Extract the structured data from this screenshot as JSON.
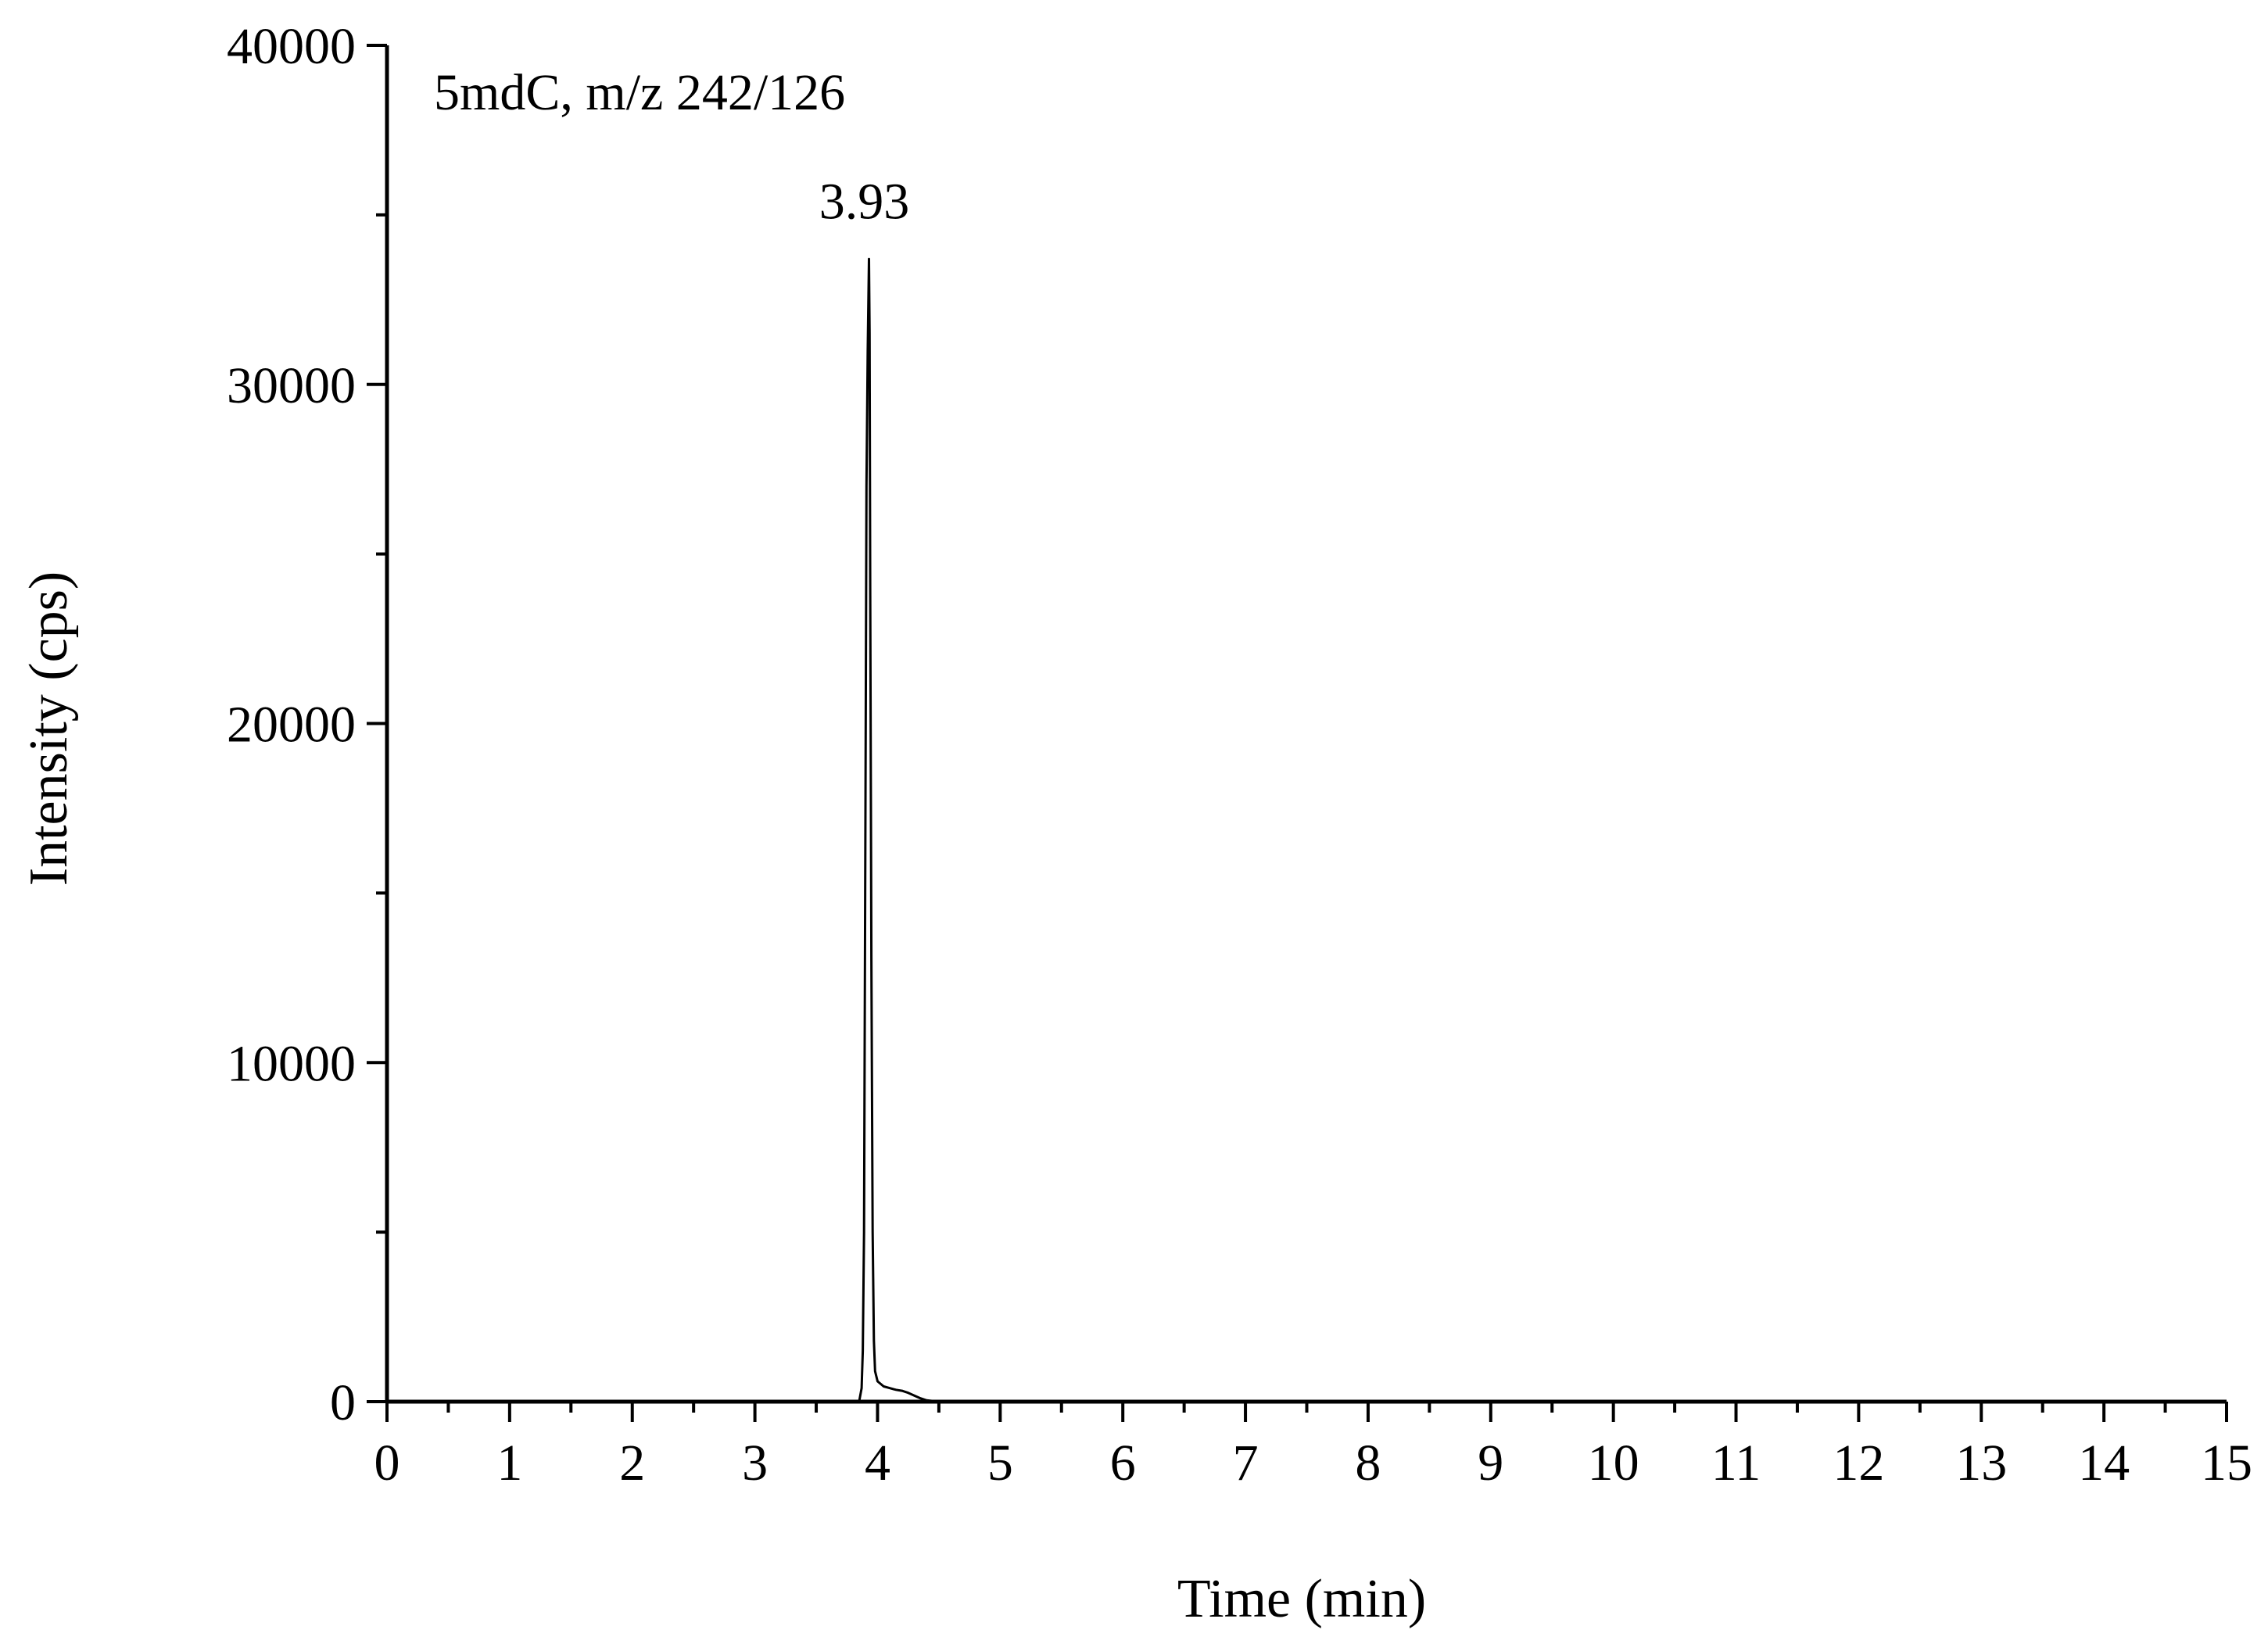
{
  "chart_data": {
    "type": "line",
    "title": "",
    "annotations": {
      "compound": "5mdC, m/z 242/126",
      "peak_label": "3.93"
    },
    "xlabel": "Time (min)",
    "ylabel": "Intensity (cps)",
    "xlim": [
      0,
      15
    ],
    "ylim": [
      0,
      40000
    ],
    "x_ticks": [
      0,
      1,
      2,
      3,
      4,
      5,
      6,
      7,
      8,
      9,
      10,
      11,
      12,
      13,
      14,
      15
    ],
    "x_tick_labels": [
      "0",
      "1",
      "2",
      "3",
      "4",
      "5",
      "6",
      "7",
      "8",
      "9",
      "10",
      "11",
      "12",
      "13",
      "14",
      "15"
    ],
    "x_minor_step": 0.5,
    "y_ticks": [
      0,
      10000,
      20000,
      30000,
      40000
    ],
    "y_tick_labels": [
      "0",
      "10000",
      "20000",
      "30000",
      "40000"
    ],
    "y_minor_step": 5000,
    "grid": false,
    "legend": "none",
    "line_color": "#000000",
    "series": [
      {
        "x": [
          0,
          3.5,
          3.85,
          3.87,
          3.88,
          3.89,
          3.9,
          3.91,
          3.92,
          3.93,
          3.935,
          3.94,
          3.95,
          3.96,
          3.97,
          3.98,
          4.0,
          4.05,
          4.1,
          4.15,
          4.2,
          4.25,
          4.3,
          4.35,
          4.4,
          4.5,
          5.0,
          15
        ],
        "y": [
          0,
          0,
          0,
          400,
          1500,
          5000,
          16000,
          27000,
          31000,
          33700,
          31500,
          24000,
          13000,
          5000,
          1800,
          900,
          600,
          450,
          400,
          350,
          320,
          260,
          180,
          100,
          40,
          0,
          0,
          0
        ]
      }
    ]
  }
}
